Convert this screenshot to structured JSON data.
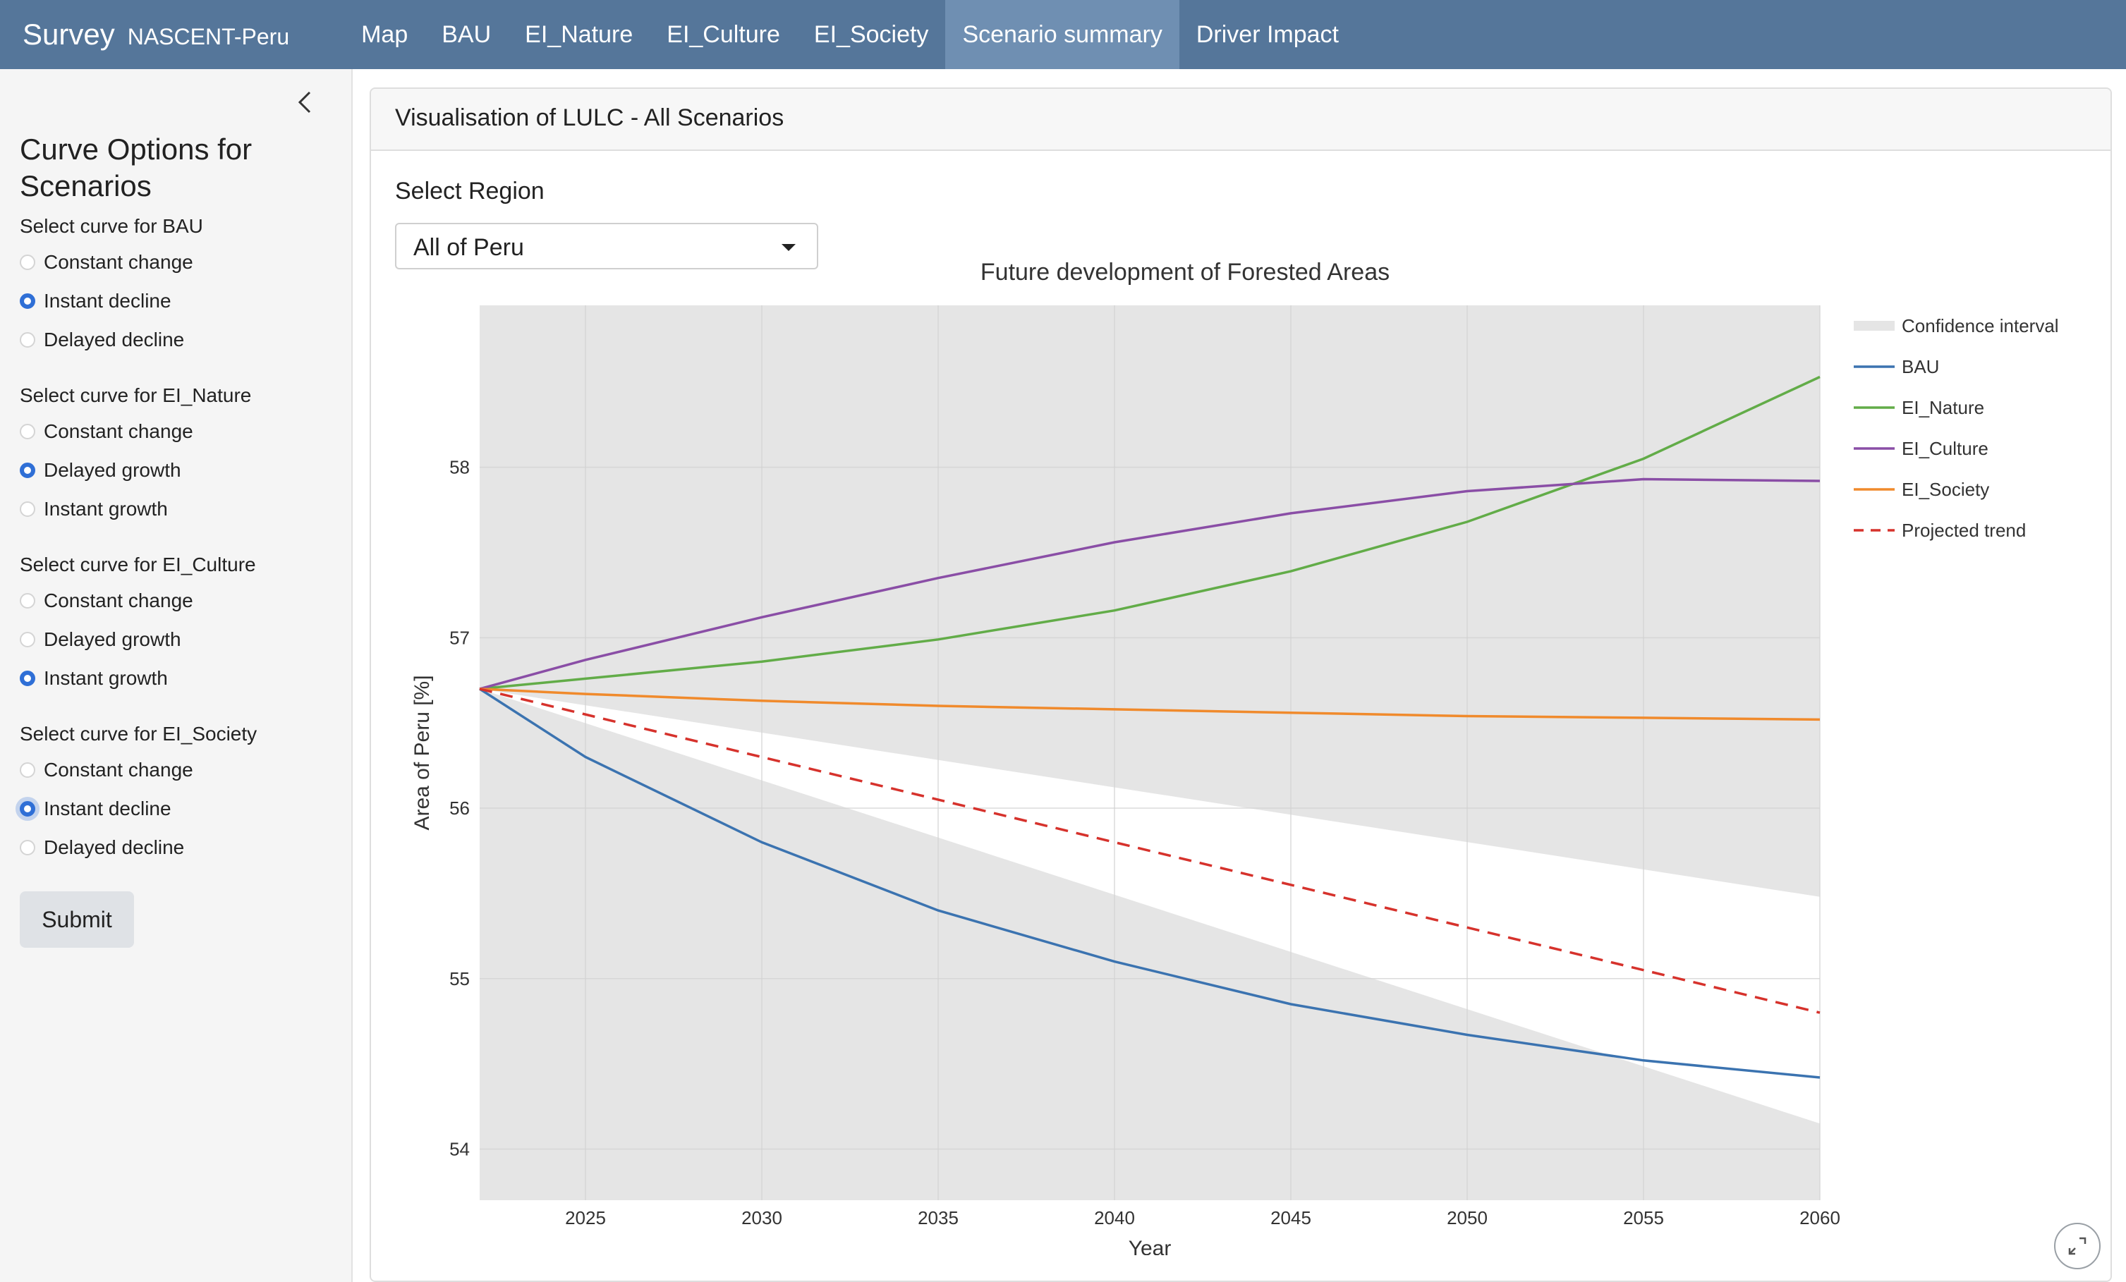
{
  "navbar": {
    "brand": "Survey",
    "subtitle": "NASCENT-Peru",
    "items": [
      {
        "label": "Map",
        "active": false
      },
      {
        "label": "BAU",
        "active": false
      },
      {
        "label": "EI_Nature",
        "active": false
      },
      {
        "label": "EI_Culture",
        "active": false
      },
      {
        "label": "EI_Society",
        "active": false
      },
      {
        "label": "Scenario summary",
        "active": true
      },
      {
        "label": "Driver Impact",
        "active": false
      }
    ]
  },
  "sidebar": {
    "collapse_icon": "chevron-left-icon",
    "title": "Curve Options for Scenarios",
    "groups": [
      {
        "label": "Select curve for BAU",
        "options": [
          "Constant change",
          "Instant decline",
          "Delayed decline"
        ],
        "selected": 1
      },
      {
        "label": "Select curve for EI_Nature",
        "options": [
          "Constant change",
          "Delayed growth",
          "Instant growth"
        ],
        "selected": 1
      },
      {
        "label": "Select curve for EI_Culture",
        "options": [
          "Constant change",
          "Delayed growth",
          "Instant growth"
        ],
        "selected": 2
      },
      {
        "label": "Select curve for EI_Society",
        "options": [
          "Constant change",
          "Instant decline",
          "Delayed decline"
        ],
        "selected": 1
      }
    ],
    "submit_label": "Submit"
  },
  "main": {
    "card_title": "Visualisation of LULC - All Scenarios",
    "region_label": "Select Region",
    "region_value": "All of Peru",
    "expand_icon": "expand-icon"
  },
  "chart_data": {
    "type": "line",
    "title": "Future development of Forested Areas",
    "xlabel": "Year",
    "ylabel": "Area of Peru [%]",
    "xlim": [
      2022,
      2060
    ],
    "ylim": [
      53.7,
      58.95
    ],
    "xticks": [
      2025,
      2030,
      2035,
      2040,
      2045,
      2050,
      2055,
      2060
    ],
    "yticks": [
      54,
      55,
      56,
      57,
      58
    ],
    "grid": true,
    "legend_position": "right",
    "confidence_interval": {
      "name": "Confidence interval",
      "color": "#e5e5e5",
      "x": [
        2022,
        2060
      ],
      "upper": [
        56.7,
        55.48
      ],
      "lower": [
        56.7,
        54.15
      ]
    },
    "series": [
      {
        "name": "BAU",
        "color": "#3b73b0",
        "dash": false,
        "x": [
          2022,
          2025,
          2030,
          2035,
          2040,
          2045,
          2050,
          2055,
          2060
        ],
        "y": [
          56.7,
          56.3,
          55.8,
          55.4,
          55.1,
          54.85,
          54.67,
          54.52,
          54.42
        ]
      },
      {
        "name": "EI_Nature",
        "color": "#62ac48",
        "dash": false,
        "x": [
          2022,
          2025,
          2030,
          2035,
          2040,
          2045,
          2050,
          2055,
          2060
        ],
        "y": [
          56.7,
          56.76,
          56.86,
          56.99,
          57.16,
          57.39,
          57.68,
          58.05,
          58.53
        ]
      },
      {
        "name": "EI_Culture",
        "color": "#8a4ea6",
        "dash": false,
        "x": [
          2022,
          2025,
          2030,
          2035,
          2040,
          2045,
          2050,
          2055,
          2060
        ],
        "y": [
          56.7,
          56.87,
          57.12,
          57.35,
          57.56,
          57.73,
          57.86,
          57.93,
          57.92
        ]
      },
      {
        "name": "EI_Society",
        "color": "#f08a2c",
        "dash": false,
        "x": [
          2022,
          2025,
          2030,
          2035,
          2040,
          2045,
          2050,
          2055,
          2060
        ],
        "y": [
          56.7,
          56.67,
          56.63,
          56.6,
          56.58,
          56.56,
          56.54,
          56.53,
          56.52
        ]
      },
      {
        "name": "Projected trend",
        "color": "#d6322c",
        "dash": true,
        "x": [
          2022,
          2060
        ],
        "y": [
          56.7,
          54.8
        ]
      }
    ]
  }
}
